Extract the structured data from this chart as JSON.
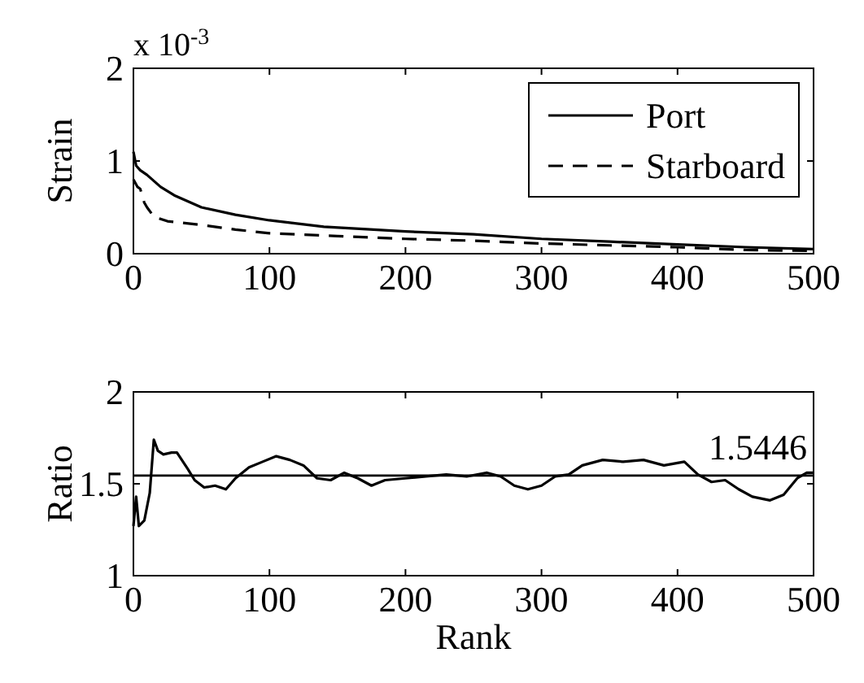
{
  "chart_data": [
    {
      "type": "line",
      "ylabel": "Strain",
      "annotations": [
        "x 10$^{-3}$"
      ],
      "xlim": [
        0,
        500
      ],
      "xticks": [
        0,
        100,
        200,
        300,
        400,
        500
      ],
      "ylim": [
        0,
        2
      ],
      "yticks": [
        0,
        1,
        2
      ],
      "legend": "top right",
      "grid": false,
      "series": [
        {
          "name": "Port",
          "color": "#000000",
          "line_style": "solid",
          "x": [
            0,
            2,
            5,
            10,
            20,
            30,
            50,
            75,
            100,
            140,
            200,
            250,
            300,
            350,
            400,
            450,
            500
          ],
          "values": [
            1.1,
            0.95,
            0.9,
            0.85,
            0.72,
            0.63,
            0.5,
            0.42,
            0.36,
            0.29,
            0.24,
            0.21,
            0.16,
            0.13,
            0.1,
            0.07,
            0.05
          ]
        },
        {
          "name": "Starboard",
          "color": "#000000",
          "line_style": "dashed",
          "x": [
            0,
            3,
            5,
            8,
            10,
            15,
            25,
            50,
            75,
            100,
            150,
            200,
            250,
            300,
            350,
            400,
            450,
            500
          ],
          "values": [
            0.8,
            0.72,
            0.7,
            0.55,
            0.5,
            0.4,
            0.35,
            0.31,
            0.26,
            0.22,
            0.19,
            0.16,
            0.14,
            0.11,
            0.09,
            0.07,
            0.04,
            0.03
          ]
        }
      ]
    },
    {
      "type": "line",
      "xlabel": "Rank",
      "ylabel": "Ratio",
      "xlim": [
        0,
        500
      ],
      "xticks": [
        0,
        100,
        200,
        300,
        400,
        500
      ],
      "ylim": [
        1,
        2
      ],
      "yticks": [
        1,
        1.5,
        2
      ],
      "grid": false,
      "legend": false,
      "ref_lines": [
        {
          "axis": "y",
          "value": 1.5446,
          "label": "1.5446"
        }
      ],
      "series": [
        {
          "color": "#000000",
          "line_style": "solid",
          "x": [
            0,
            2,
            4,
            8,
            12,
            15,
            18,
            22,
            28,
            32,
            40,
            45,
            52,
            60,
            68,
            75,
            85,
            95,
            105,
            115,
            125,
            135,
            145,
            155,
            165,
            175,
            185,
            200,
            215,
            230,
            245,
            260,
            270,
            280,
            290,
            300,
            310,
            320,
            330,
            345,
            360,
            375,
            390,
            405,
            415,
            425,
            435,
            445,
            455,
            468,
            478,
            488,
            495,
            500
          ],
          "values": [
            1.27,
            1.43,
            1.27,
            1.3,
            1.45,
            1.74,
            1.68,
            1.66,
            1.67,
            1.67,
            1.58,
            1.52,
            1.48,
            1.49,
            1.47,
            1.53,
            1.59,
            1.62,
            1.65,
            1.63,
            1.6,
            1.53,
            1.52,
            1.56,
            1.53,
            1.49,
            1.52,
            1.53,
            1.54,
            1.55,
            1.54,
            1.56,
            1.54,
            1.49,
            1.47,
            1.49,
            1.54,
            1.55,
            1.6,
            1.63,
            1.62,
            1.63,
            1.6,
            1.62,
            1.55,
            1.51,
            1.52,
            1.47,
            1.43,
            1.41,
            1.44,
            1.53,
            1.56,
            1.56
          ]
        }
      ]
    }
  ]
}
